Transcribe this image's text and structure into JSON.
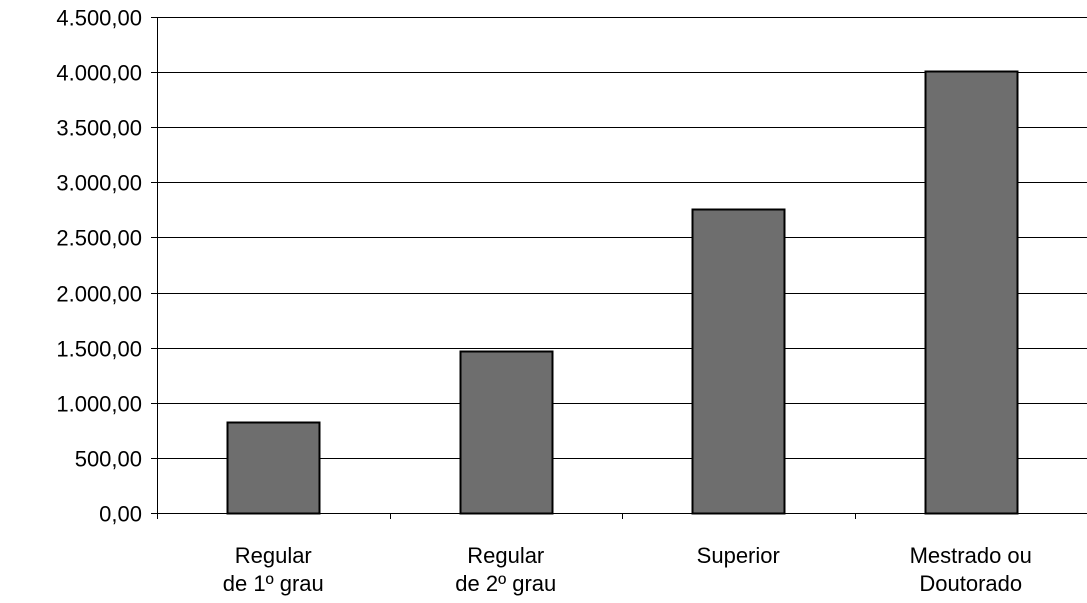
{
  "chart_data": {
    "type": "bar",
    "categories": [
      [
        "Regular",
        "de 1º grau"
      ],
      [
        "Regular",
        "de 2º grau"
      ],
      [
        "Superior"
      ],
      [
        "Mestrado ou",
        "Doutorado"
      ]
    ],
    "values": [
      830,
      1470,
      2760,
      4010
    ],
    "ylim": [
      0,
      4500
    ],
    "yticks": [
      0,
      500,
      1000,
      1500,
      2000,
      2500,
      3000,
      3500,
      4000,
      4500
    ],
    "ytick_labels": [
      "0,00",
      "500,00",
      "1.000,00",
      "1.500,00",
      "2.000,00",
      "2.500,00",
      "3.000,00",
      "3.500,00",
      "4.000,00",
      "4.500,00"
    ],
    "grid": true,
    "legend": "none",
    "title": "",
    "xlabel": "",
    "ylabel": "",
    "bar_color": "#6e6e6e",
    "bar_stroke": "#000000"
  }
}
